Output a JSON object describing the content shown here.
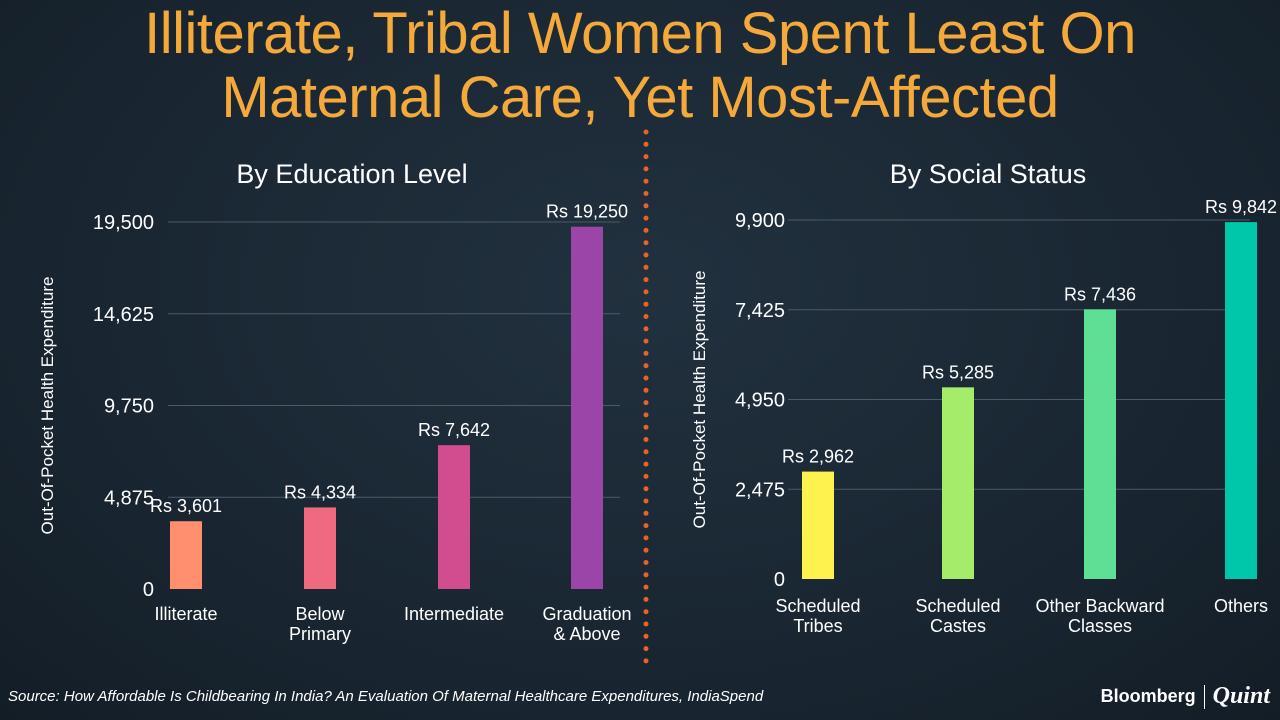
{
  "title": {
    "line1": "Illiterate, Tribal Women Spent Least On",
    "line2": "Maternal Care, Yet Most-Affected"
  },
  "source": "Source: How Affordable Is Childbearing In India? An Evaluation Of Maternal Healthcare Expenditures, IndiaSpend",
  "brand": {
    "name1": "Bloomberg",
    "name2": "Quint"
  },
  "colors": {
    "title": "#f5a93a",
    "divider": "#e8622a",
    "gridline": "#4a5a66",
    "background": "#1c2a35"
  },
  "chart_data": [
    {
      "type": "bar",
      "title": "By Education Level",
      "ylabel": "Out-Of-Pocket Health Expenditure",
      "xlabel": "",
      "ylim": [
        0,
        19500
      ],
      "yticks": [
        0,
        4875,
        9750,
        14625,
        19500
      ],
      "ytick_labels": [
        "0",
        "4,875",
        "9,750",
        "14,625",
        "19,500"
      ],
      "categories": [
        [
          "Illiterate"
        ],
        [
          "Below",
          "Primary"
        ],
        [
          "Intermediate"
        ],
        [
          "Graduation",
          "& Above"
        ]
      ],
      "values": [
        3601,
        4334,
        7642,
        19250
      ],
      "value_labels": [
        "Rs 3,601",
        "Rs 4,334",
        "Rs 7,642",
        "Rs 19,250"
      ],
      "colors": [
        "#ff8f6e",
        "#ef6a7e",
        "#d24d90",
        "#9c45a8"
      ]
    },
    {
      "type": "bar",
      "title": "By Social Status",
      "ylabel": "Out-Of-Pocket Health Expenditure",
      "xlabel": "",
      "ylim": [
        0,
        9900
      ],
      "yticks": [
        0,
        2475,
        4950,
        7425,
        9900
      ],
      "ytick_labels": [
        "0",
        "2,475",
        "4,950",
        "7,425",
        "9,900"
      ],
      "categories": [
        [
          "Scheduled",
          "Tribes"
        ],
        [
          "Scheduled",
          "Castes"
        ],
        [
          "Other Backward",
          "Classes"
        ],
        [
          "Others"
        ]
      ],
      "values": [
        2962,
        5285,
        7436,
        9842
      ],
      "value_labels": [
        "Rs 2,962",
        "Rs 5,285",
        "Rs 7,436",
        "Rs 9,842"
      ],
      "colors": [
        "#fef24f",
        "#a6ec6b",
        "#5fdf96",
        "#00c7aa"
      ]
    }
  ]
}
